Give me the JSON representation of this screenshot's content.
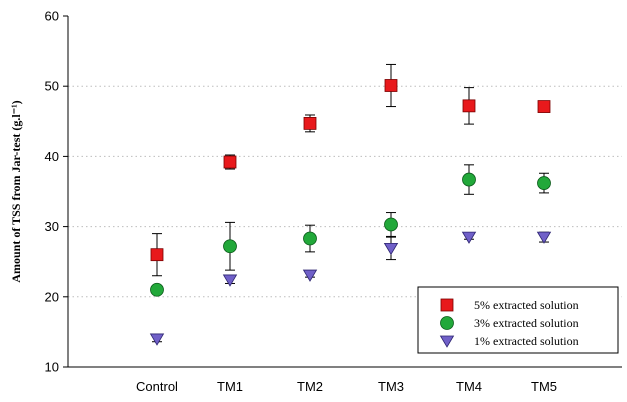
{
  "chart_data": {
    "type": "scatter",
    "title": "",
    "xlabel": "",
    "ylabel": "Amount of TSS from Jar-test (g.l⁻¹)",
    "ylim": [
      10,
      60
    ],
    "yticks": [
      10,
      20,
      30,
      40,
      50,
      60
    ],
    "grid": "horizontal dotted",
    "legend_position": "bottom-right",
    "categories": [
      "Control",
      "TM1",
      "TM2",
      "TM3",
      "TM4",
      "TM5"
    ],
    "series": [
      {
        "name": "5% extracted solution",
        "marker": "square",
        "color": "#e8191c",
        "values": [
          26.0,
          39.2,
          44.7,
          50.1,
          47.2,
          47.1
        ],
        "error": [
          3.0,
          1.0,
          1.2,
          3.0,
          2.6,
          0.6
        ]
      },
      {
        "name": "3% extracted solution",
        "marker": "circle",
        "color": "#22a83a",
        "values": [
          21.0,
          27.2,
          28.3,
          30.3,
          36.7,
          36.2
        ],
        "error": [
          0.5,
          3.4,
          1.9,
          1.7,
          2.1,
          1.4
        ]
      },
      {
        "name": "1% extracted solution",
        "marker": "triangle-down",
        "color": "#7060c8",
        "values": [
          14.0,
          22.4,
          23.1,
          26.9,
          28.5,
          28.5
        ],
        "error": [
          0.4,
          0.5,
          0.3,
          1.6,
          0.3,
          0.7
        ]
      }
    ]
  }
}
